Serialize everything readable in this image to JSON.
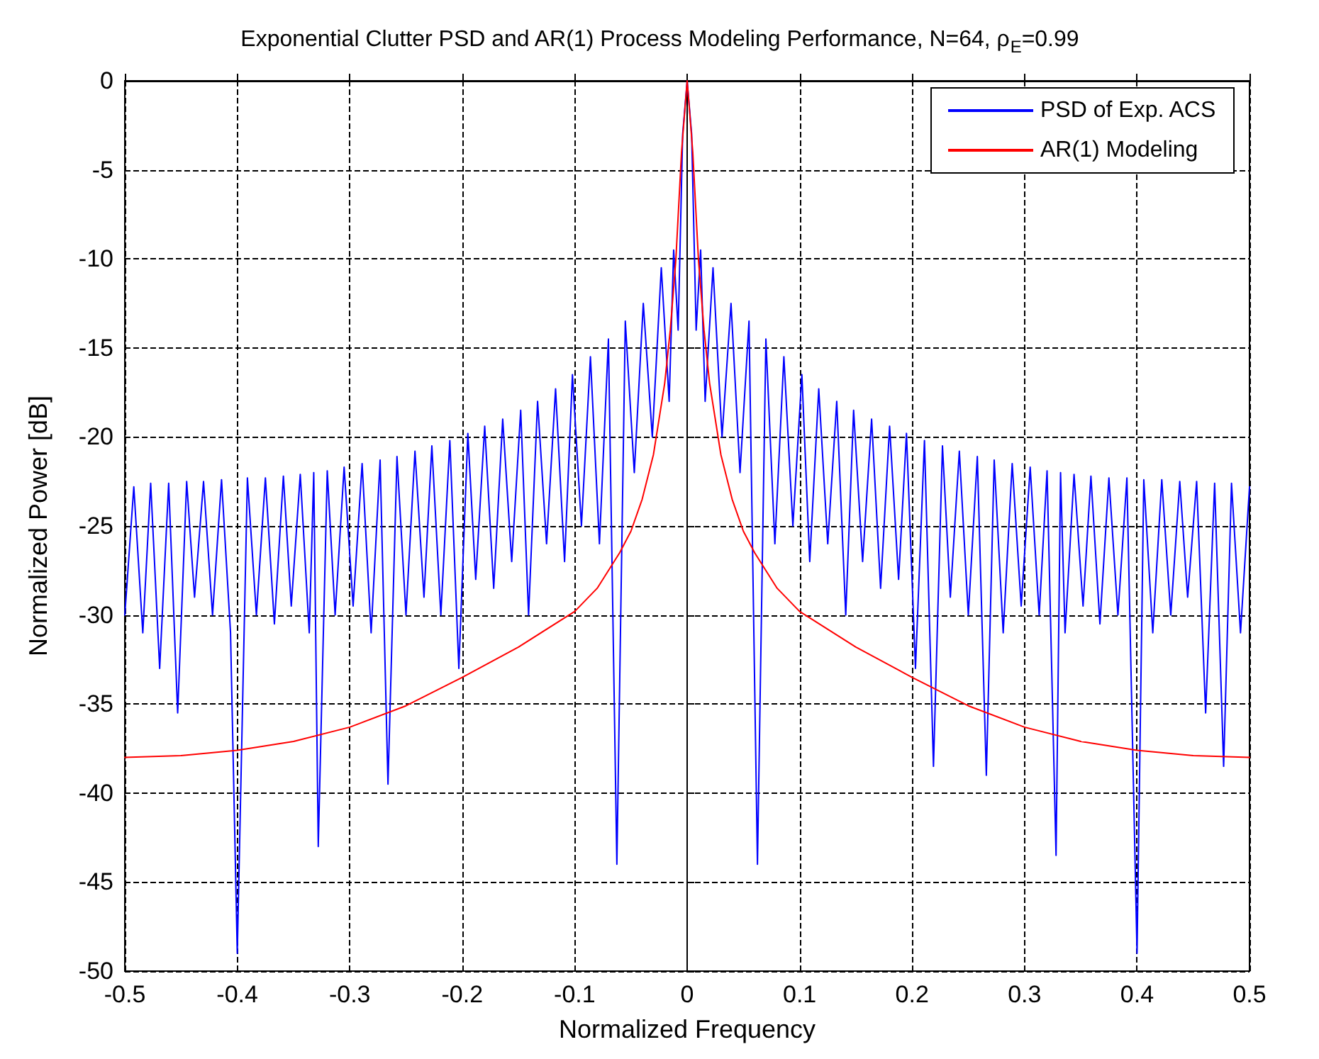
{
  "chart_data": {
    "type": "line",
    "title": "Exponential Clutter PSD and AR(1) Process Modeling Performance, N=64, ρ$_{E}$=0.99",
    "xlabel": "Normalized Frequency",
    "ylabel": "Normalized Power [dB]",
    "xlim": [
      -0.5,
      0.5
    ],
    "xticks": [
      -0.5,
      -0.4,
      -0.3,
      -0.2,
      -0.1,
      0,
      0.1,
      0.2,
      0.3,
      0.4,
      0.5
    ],
    "ylim": [
      -50,
      0
    ],
    "yticks": [
      -50,
      -45,
      -40,
      -35,
      -30,
      -25,
      -20,
      -15,
      -10,
      -5,
      0
    ],
    "grid": true,
    "legend": "top right",
    "line_style": "solid",
    "marker": "none",
    "series": [
      {
        "name": "PSD of Exp. ACS",
        "color": "#0000ff",
        "x": [
          -0.5,
          -0.492,
          -0.484,
          -0.477,
          -0.469,
          -0.461,
          -0.453,
          -0.445,
          -0.438,
          -0.43,
          -0.422,
          -0.414,
          -0.406,
          -0.4,
          -0.391,
          -0.383,
          -0.375,
          -0.367,
          -0.359,
          -0.352,
          -0.344,
          -0.336,
          -0.332,
          -0.328,
          -0.32,
          -0.313,
          -0.305,
          -0.297,
          -0.289,
          -0.281,
          -0.273,
          -0.266,
          -0.258,
          -0.25,
          -0.242,
          -0.234,
          -0.227,
          -0.219,
          -0.211,
          -0.203,
          -0.195,
          -0.188,
          -0.18,
          -0.172,
          -0.164,
          -0.156,
          -0.148,
          -0.141,
          -0.133,
          -0.125,
          -0.117,
          -0.109,
          -0.102,
          -0.094,
          -0.086,
          -0.078,
          -0.07,
          -0.0625,
          -0.055,
          -0.047,
          -0.039,
          -0.031,
          -0.023,
          -0.016,
          -0.012,
          -0.008,
          -0.004,
          0,
          0.004,
          0.008,
          0.012,
          0.016,
          0.023,
          0.031,
          0.039,
          0.047,
          0.055,
          0.0625,
          0.07,
          0.078,
          0.086,
          0.094,
          0.102,
          0.109,
          0.117,
          0.125,
          0.133,
          0.141,
          0.148,
          0.156,
          0.164,
          0.172,
          0.18,
          0.188,
          0.195,
          0.203,
          0.211,
          0.219,
          0.227,
          0.234,
          0.242,
          0.25,
          0.258,
          0.266,
          0.273,
          0.281,
          0.289,
          0.297,
          0.305,
          0.313,
          0.32,
          0.328,
          0.332,
          0.336,
          0.344,
          0.352,
          0.359,
          0.367,
          0.375,
          0.383,
          0.391,
          0.4,
          0.406,
          0.414,
          0.422,
          0.43,
          0.438,
          0.445,
          0.453,
          0.461,
          0.469,
          0.477,
          0.484,
          0.492,
          0.5
        ],
        "values": [
          -30,
          -22.8,
          -31,
          -22.6,
          -33,
          -22.6,
          -35.5,
          -22.5,
          -29,
          -22.5,
          -30,
          -22.4,
          -31,
          -49,
          -22.3,
          -30,
          -22.3,
          -30.5,
          -22.2,
          -29.5,
          -22.1,
          -31,
          -22,
          -43,
          -21.9,
          -30,
          -21.7,
          -29.5,
          -21.5,
          -31,
          -21.3,
          -39.5,
          -21.1,
          -30,
          -20.8,
          -29,
          -20.5,
          -30,
          -20.2,
          -33,
          -19.8,
          -28,
          -19.4,
          -28.5,
          -19,
          -27,
          -18.5,
          -30,
          -18,
          -26,
          -17.3,
          -27,
          -16.5,
          -25,
          -15.5,
          -26,
          -14.5,
          -44,
          -13.5,
          -22,
          -12.5,
          -20,
          -10.5,
          -18,
          -9.5,
          -14,
          -3,
          0,
          -3,
          -14,
          -9.5,
          -18,
          -10.5,
          -20,
          -12.5,
          -22,
          -13.5,
          -44,
          -14.5,
          -26,
          -15.5,
          -25,
          -16.5,
          -27,
          -17.3,
          -26,
          -18,
          -30,
          -18.5,
          -27,
          -19,
          -28.5,
          -19.4,
          -28,
          -19.8,
          -33,
          -20.2,
          -38.5,
          -20.5,
          -29,
          -20.8,
          -30,
          -21.1,
          -39,
          -21.3,
          -31,
          -21.5,
          -29.5,
          -21.7,
          -30,
          -21.9,
          -43.5,
          -22,
          -31,
          -22.1,
          -29.5,
          -22.2,
          -30.5,
          -22.3,
          -30,
          -22.3,
          -49,
          -22.4,
          -31,
          -22.4,
          -30,
          -22.5,
          -29,
          -22.5,
          -35.5,
          -22.6,
          -38.5,
          -22.6,
          -31,
          -22.8
        ]
      },
      {
        "name": "AR(1) Modeling",
        "color": "#ff0000",
        "x": [
          -0.5,
          -0.45,
          -0.4,
          -0.35,
          -0.3,
          -0.25,
          -0.2,
          -0.15,
          -0.1,
          -0.08,
          -0.06,
          -0.05,
          -0.04,
          -0.03,
          -0.02,
          -0.015,
          -0.01,
          -0.005,
          0,
          0.005,
          0.01,
          0.015,
          0.02,
          0.03,
          0.04,
          0.05,
          0.06,
          0.08,
          0.1,
          0.15,
          0.2,
          0.25,
          0.3,
          0.35,
          0.4,
          0.45,
          0.5
        ],
        "values": [
          -38,
          -37.9,
          -37.6,
          -37.1,
          -36.3,
          -35.1,
          -33.5,
          -31.8,
          -29.8,
          -28.5,
          -26.5,
          -25.3,
          -23.5,
          -21,
          -17,
          -14,
          -10,
          -4,
          0,
          -4,
          -10,
          -14,
          -17,
          -21,
          -23.5,
          -25.3,
          -26.5,
          -28.5,
          -29.8,
          -31.8,
          -33.5,
          -35.1,
          -36.3,
          -37.1,
          -37.6,
          -37.9,
          -38
        ]
      }
    ]
  }
}
